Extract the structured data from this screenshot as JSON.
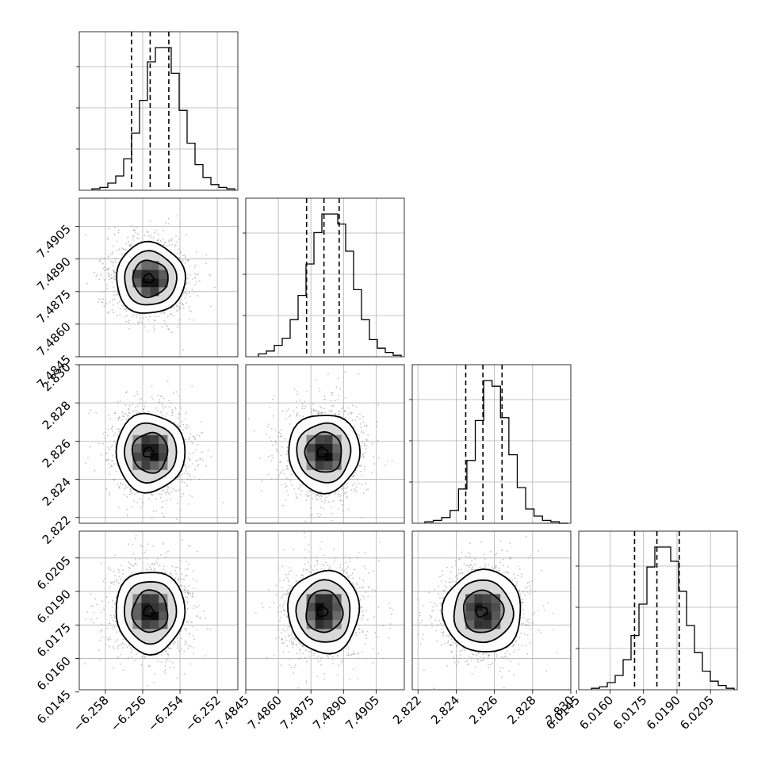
{
  "chart_data": {
    "type": "corner",
    "title": "",
    "grid": true,
    "parameters": [
      {
        "label": "",
        "ticks": [
          -6.258,
          -6.256,
          -6.254,
          -6.252
        ],
        "tick_labels": [
          "−6.258",
          "−6.256",
          "−6.254",
          "−6.252"
        ],
        "range": [
          -6.2594,
          -6.2509
        ],
        "mean": -6.2556,
        "sigma": 0.0009,
        "quantiles": [
          -6.2566,
          -6.2556,
          -6.2546
        ],
        "hist_counts": [
          1,
          2,
          5,
          10,
          22,
          40,
          63,
          90,
          100,
          100,
          82,
          56,
          33,
          18,
          9,
          4,
          2,
          1
        ]
      },
      {
        "label": "",
        "ticks": [
          7.4845,
          7.486,
          7.4875,
          7.489,
          7.4905
        ],
        "tick_labels": [
          "7.4845",
          "7.4860",
          "7.4875",
          "7.4890",
          "7.4905"
        ],
        "range": [
          7.4845,
          7.4918
        ],
        "mean": 7.4881,
        "sigma": 0.0008,
        "quantiles": [
          7.4873,
          7.4881,
          7.4888
        ],
        "hist_counts": [
          2,
          4,
          8,
          13,
          26,
          43,
          65,
          87,
          100,
          100,
          93,
          74,
          47,
          26,
          12,
          6,
          3,
          1
        ]
      },
      {
        "label": "",
        "ticks": [
          2.822,
          2.824,
          2.826,
          2.828,
          2.83
        ],
        "tick_labels": [
          "2.822",
          "2.824",
          "2.826",
          "2.828",
          "2.830"
        ],
        "range": [
          2.8217,
          2.83
        ],
        "mean": 2.8254,
        "sigma": 0.001,
        "quantiles": [
          2.8245,
          2.8254,
          2.8264
        ],
        "hist_counts": [
          1,
          2,
          4,
          9,
          24,
          44,
          72,
          100,
          96,
          74,
          48,
          25,
          10,
          5,
          2,
          1,
          0
        ]
      },
      {
        "label": "",
        "ticks": [
          6.0145,
          6.016,
          6.0175,
          6.019,
          6.0205
        ],
        "tick_labels": [
          "6.0145",
          "6.0160",
          "6.0175",
          "6.0190",
          "6.0205"
        ],
        "range": [
          6.0146,
          6.0217
        ],
        "mean": 6.0181,
        "sigma": 0.0009,
        "quantiles": [
          6.0171,
          6.0181,
          6.0191
        ],
        "hist_counts": [
          1,
          2,
          5,
          10,
          21,
          38,
          60,
          86,
          100,
          100,
          90,
          69,
          45,
          26,
          13,
          6,
          3,
          1
        ]
      }
    ]
  }
}
